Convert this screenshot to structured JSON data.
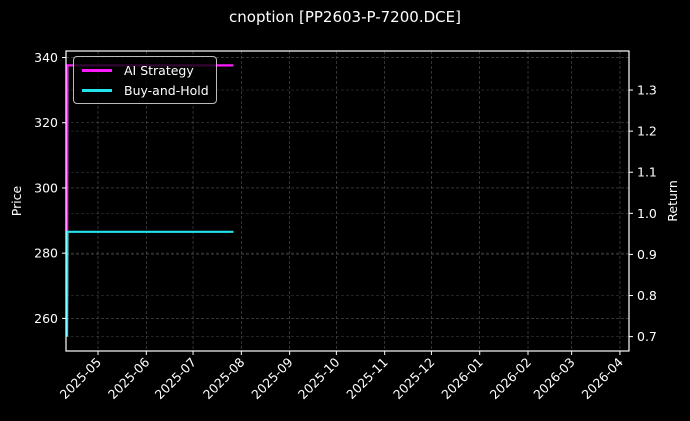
{
  "title": "cnoption [PP2603-P-7200.DCE]",
  "chart_data": {
    "type": "line",
    "title": "cnoption [PP2603-P-7200.DCE]",
    "xlabel": "",
    "ylabel": "Price",
    "ylabel_right": "Return",
    "x_ticks": [
      "2025-05",
      "2025-06",
      "2025-07",
      "2025-08",
      "2025-09",
      "2025-10",
      "2025-11",
      "2025-12",
      "2026-01",
      "2026-02",
      "2026-03",
      "2026-04"
    ],
    "y_ticks_left": [
      260,
      280,
      300,
      320,
      340
    ],
    "y_ticks_right": [
      0.7,
      0.8,
      0.9,
      1.0,
      1.1,
      1.2,
      1.3
    ],
    "ylim_left": [
      250,
      342
    ],
    "ylim_right": [
      0.665,
      1.395
    ],
    "grid": true,
    "legend_position": "upper left",
    "series": [
      {
        "name": "AI Strategy",
        "color": "#ff1aff",
        "axis": "right",
        "x": [
          "2025-04-21",
          "2025-04-22",
          "2025-07-27"
        ],
        "values": [
          0.7,
          1.36,
          1.36
        ]
      },
      {
        "name": "Buy-and-Hold",
        "color": "#22e5ec",
        "axis": "right",
        "x": [
          "2025-04-21",
          "2025-04-22",
          "2025-07-27"
        ],
        "values": [
          0.7,
          0.955,
          0.955
        ]
      }
    ]
  },
  "legend": {
    "items": [
      {
        "label": "AI Strategy",
        "color": "#ff1aff"
      },
      {
        "label": "Buy-and-Hold",
        "color": "#22e5ec"
      }
    ]
  },
  "axes": {
    "left_label": "Price",
    "right_label": "Return"
  }
}
